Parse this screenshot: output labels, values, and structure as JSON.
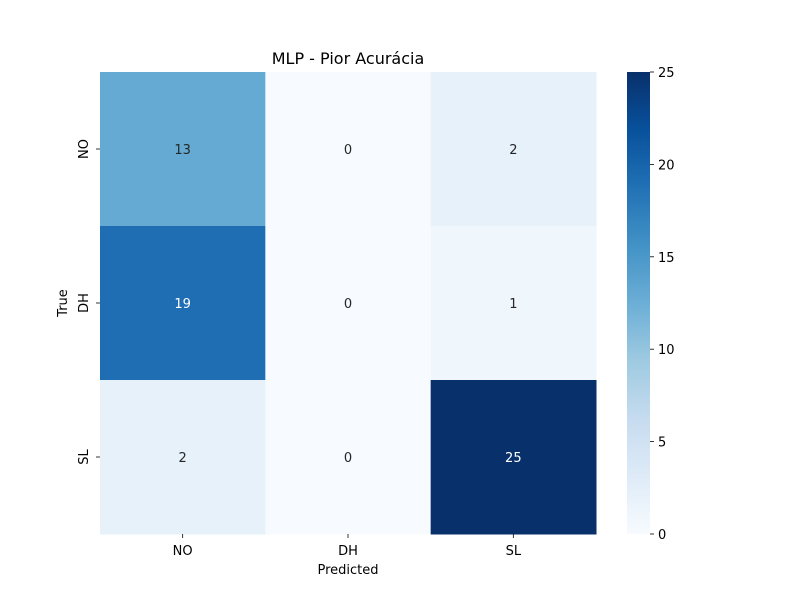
{
  "chart_data": {
    "type": "heatmap",
    "title": "MLP - Pior Acurácia",
    "xlabel": "Predicted",
    "ylabel": "True",
    "x_categories": [
      "NO",
      "DH",
      "SL"
    ],
    "y_categories": [
      "NO",
      "DH",
      "SL"
    ],
    "values": [
      [
        13,
        0,
        2
      ],
      [
        19,
        0,
        1
      ],
      [
        2,
        0,
        25
      ]
    ],
    "colorbar": {
      "min": 0,
      "max": 25,
      "ticks": [
        0,
        5,
        10,
        15,
        20,
        25
      ],
      "colormap": "Blues"
    }
  }
}
